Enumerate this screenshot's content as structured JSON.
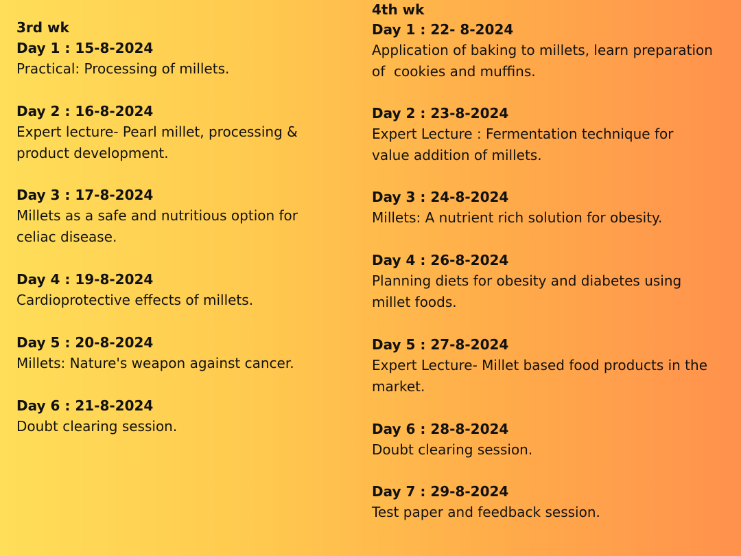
{
  "week3": {
    "title": "3rd wk",
    "days": [
      {
        "label": "Day 1 : 15-8-2024",
        "text": "Practical: Processing of millets."
      },
      {
        "label": "Day 2 : 16-8-2024",
        "text": "Expert lecture- Pearl millet, processing &\nproduct development."
      },
      {
        "label": "Day 3 : 17-8-2024",
        "text": "Millets as a safe and nutritious option for\nceliac disease."
      },
      {
        "label": "Day 4 : 19-8-2024",
        "text": "Cardioprotective effects of millets."
      },
      {
        "label": "Day 5 : 20-8-2024",
        "text": "Millets: Nature's weapon against cancer."
      },
      {
        "label": "Day 6 : 21-8-2024",
        "text": "Doubt clearing session."
      }
    ]
  },
  "week4": {
    "title": "4th wk",
    "days": [
      {
        "label": "Day 1 : 22- 8-2024",
        "text": "Application of baking to millets, learn preparation\nof  cookies and muffins."
      },
      {
        "label": "Day 2 : 23-8-2024",
        "text": "Expert Lecture : Fermentation technique for\nvalue addition of millets."
      },
      {
        "label": "Day 3 : 24-8-2024",
        "text": "Millets: A nutrient rich solution for obesity."
      },
      {
        "label": "Day 4 : 26-8-2024",
        "text": "Planning diets for obesity and diabetes using\nmillet foods."
      },
      {
        "label": "Day 5 : 27-8-2024",
        "text": "Expert Lecture- Millet based food products in the\nmarket."
      },
      {
        "label": "Day 6 : 28-8-2024",
        "text": "Doubt clearing session."
      },
      {
        "label": "Day 7 : 29-8-2024",
        "text": "Test paper and feedback session."
      }
    ]
  }
}
